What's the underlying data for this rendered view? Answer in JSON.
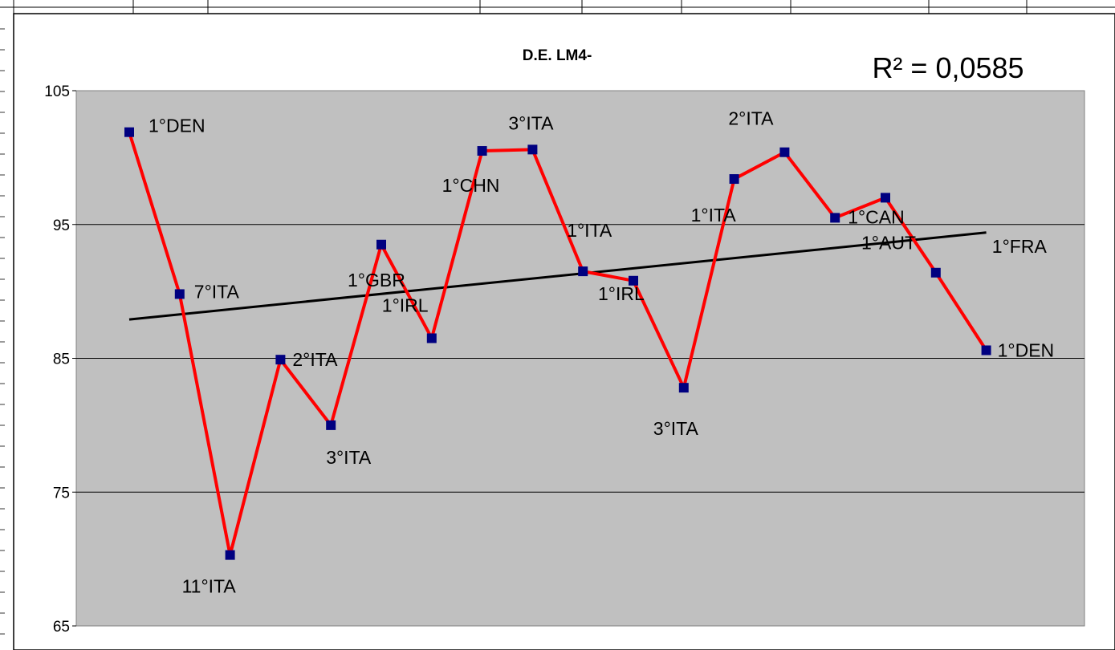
{
  "chart_data": {
    "type": "line",
    "title": "D.E. LM4-",
    "xlabel": "",
    "ylabel": "",
    "ylim": [
      65,
      105
    ],
    "yticks": [
      "65",
      "75",
      "85",
      "95",
      "105"
    ],
    "grid": true,
    "legend": "none",
    "series": [
      {
        "values": [
          101.9,
          89.8,
          70.3,
          84.9,
          80.0,
          93.5,
          86.5,
          100.5,
          100.6,
          91.5,
          90.8,
          82.8,
          98.4,
          100.4,
          95.5,
          97.0,
          91.4,
          85.6
        ],
        "labels": [
          "1°DEN",
          "7°ITA",
          "11°ITA",
          "2°ITA",
          "3°ITA",
          "1°GBR",
          "1°IRL",
          "1°CHN",
          "3°ITA",
          "1°ITA",
          "1°IRL",
          "3°ITA",
          "1°ITA",
          "2°ITA",
          "1°CAN",
          "1°AUT",
          "1°FRA",
          "1°DEN"
        ]
      }
    ],
    "trendline": {
      "start": 87.9,
      "end": 94.4
    },
    "r_squared_label": "R² = 0,0585"
  },
  "colors": {
    "plot_bg": "#c0c0c0",
    "line": "#ff0000",
    "marker": "#000080",
    "trend": "#000000",
    "grid": "#000000"
  }
}
